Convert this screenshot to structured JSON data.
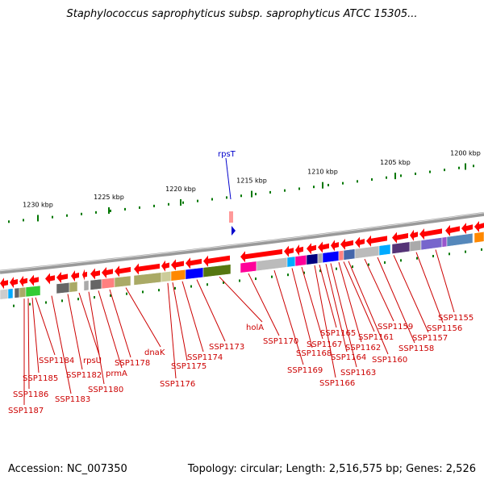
{
  "title": "Staphylococcus saprophyticus subsp. saprophyticus ATCC 15305...",
  "footer": {
    "accession": "Accession: NC_007350",
    "topology": "Topology: circular; Length: 2,516,575 bp; Genes: 2,526"
  },
  "ruler": {
    "labels": [
      "1230 kbp",
      "1225 kbp",
      "1220 kbp",
      "1215 kbp",
      "1210 kbp",
      "1205 kbp",
      "1200 kbp"
    ]
  },
  "highlight_gene": "rpsT",
  "gene_labels": [
    "SSP1187",
    "SSP1186",
    "SSP1185",
    "SSP1184",
    "SSP1183",
    "SSP1182",
    "rpsU",
    "SSP1180",
    "prmA",
    "SSP1178",
    "dnaK",
    "SSP1176",
    "SSP1175",
    "SSP1174",
    "SSP1173",
    "holA",
    "SSP1170",
    "SSP1169",
    "SSP1168",
    "SSP1167",
    "SSP1166",
    "SSP1165",
    "SSP1164",
    "SSP1163",
    "SSP1162",
    "SSP1161",
    "SSP1160",
    "SSP1159",
    "SSP1158",
    "SSP1157",
    "SSP1156",
    "SSP1155"
  ],
  "colors": {
    "gene_red": "#ff0000",
    "label_red": "#cc0000",
    "backbone": "#888888",
    "ruler_green": "#007700",
    "rps_blue": "#0000cc"
  }
}
